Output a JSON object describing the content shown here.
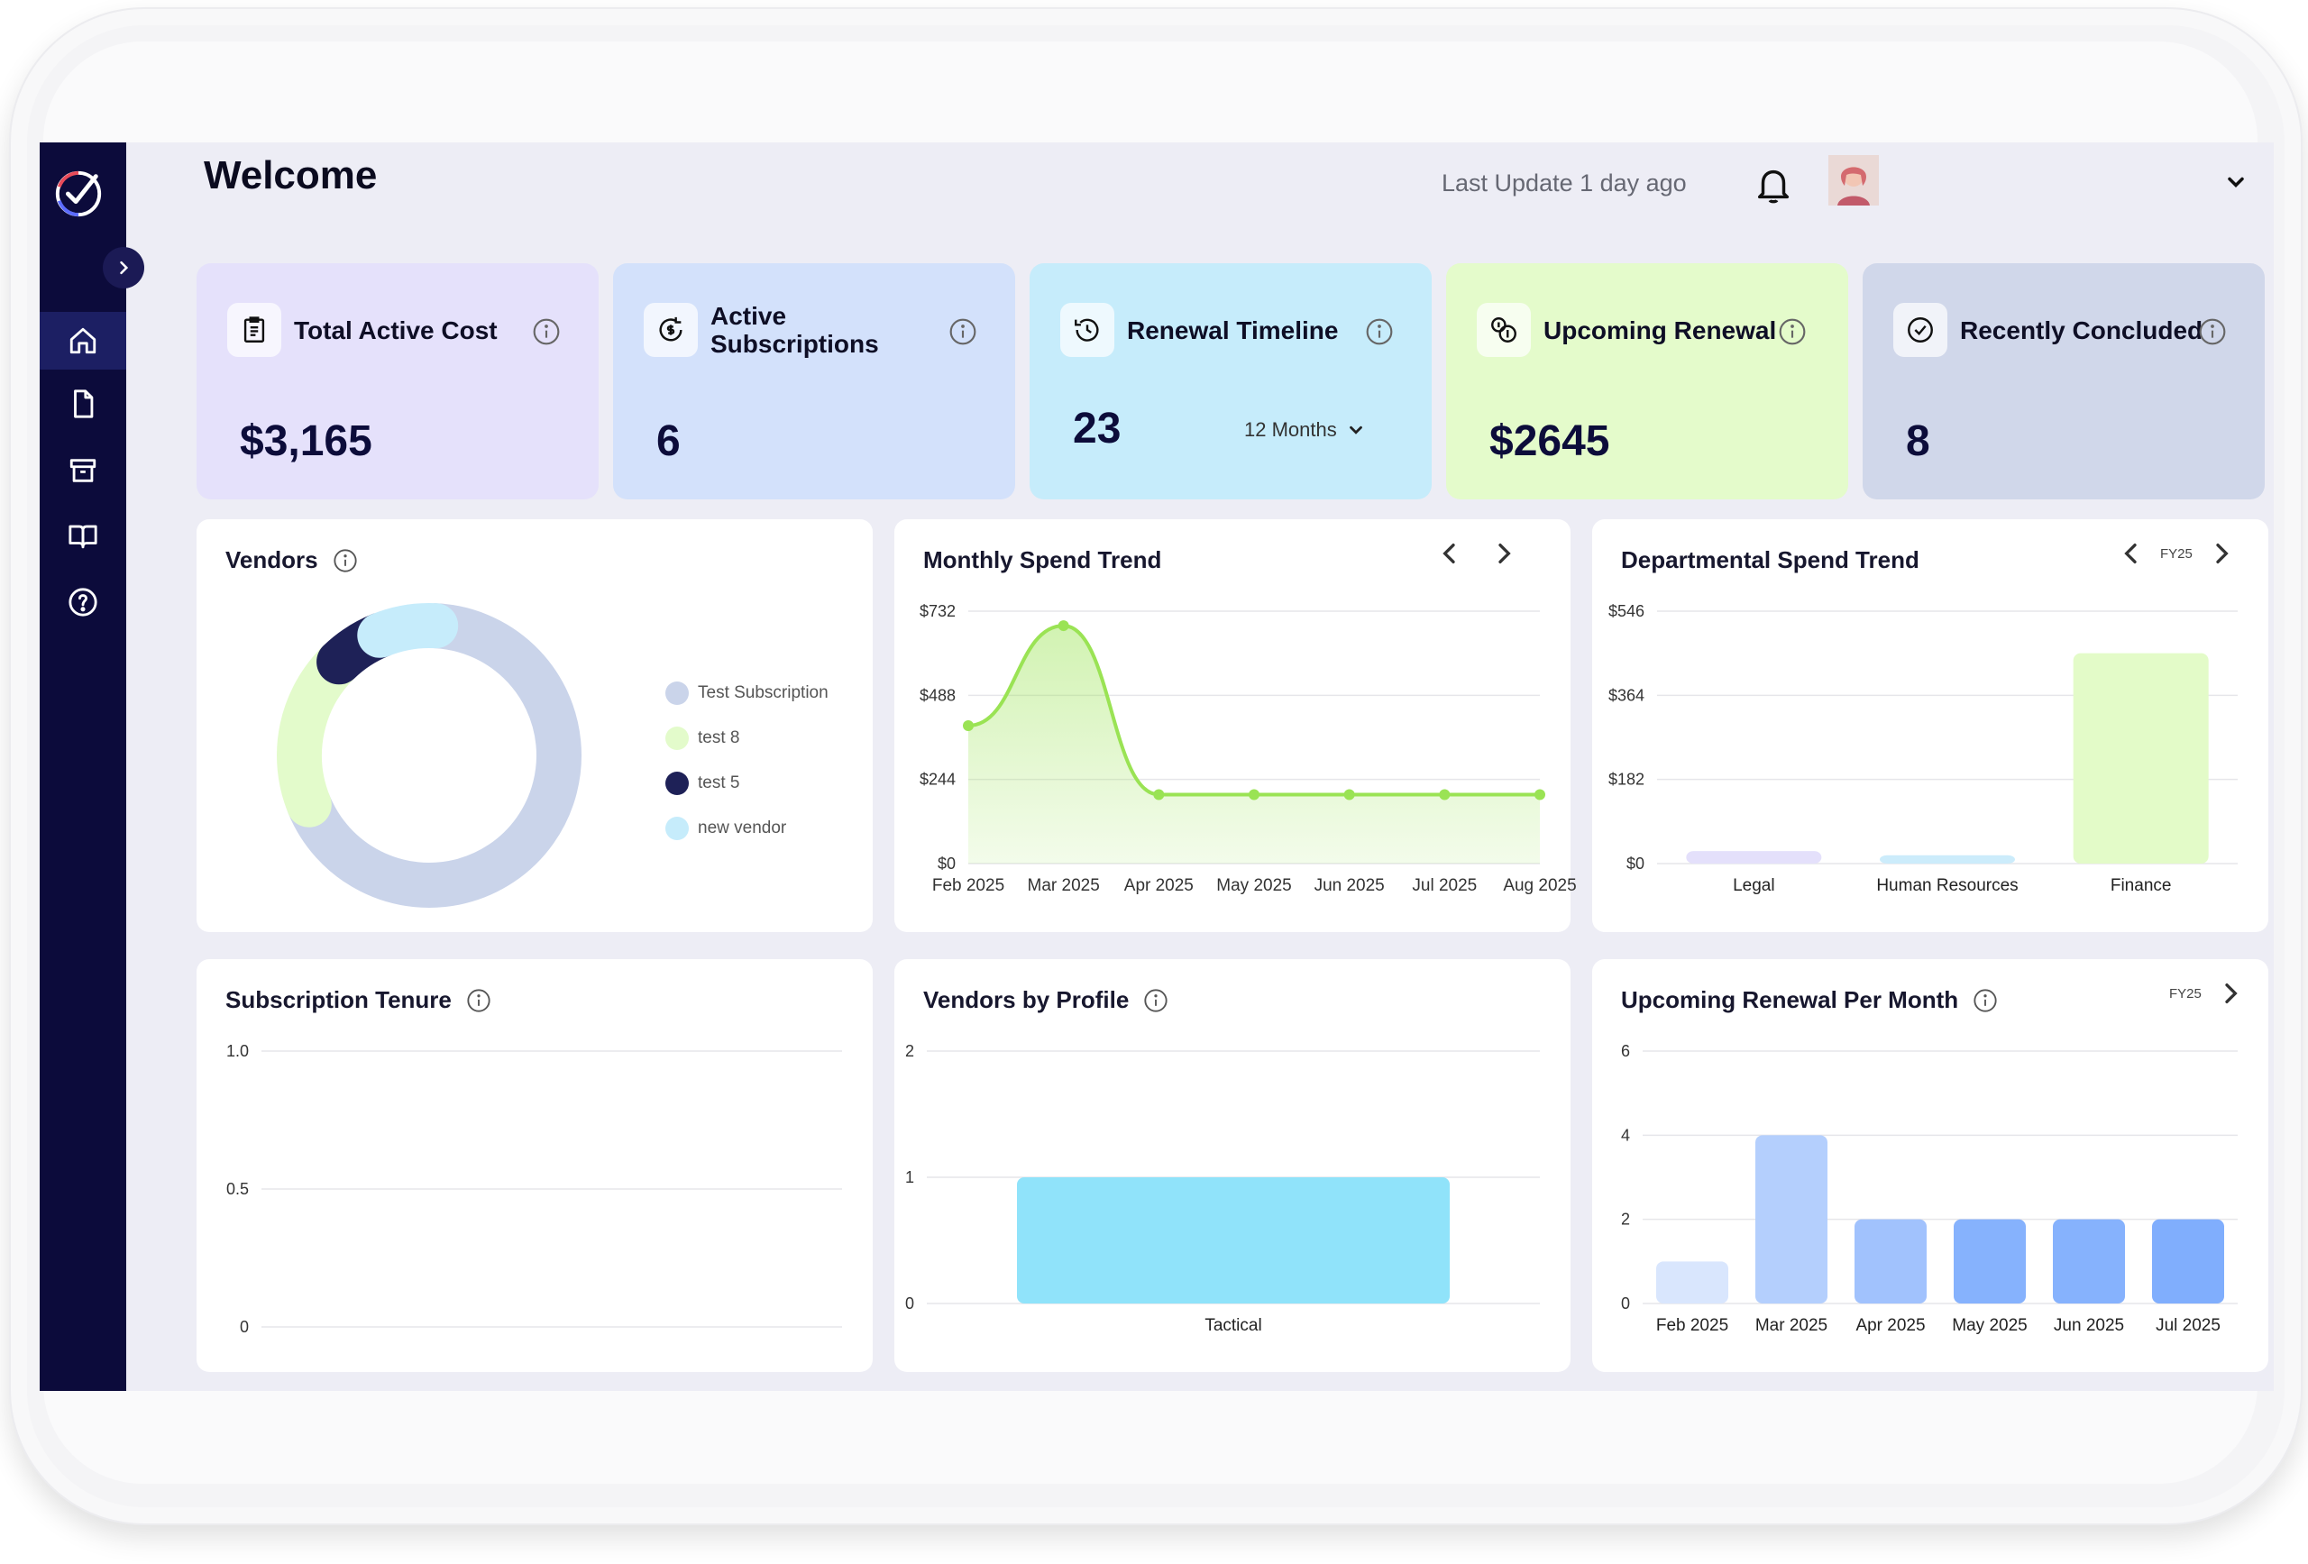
{
  "header": {
    "welcome": "Welcome",
    "last_update": "Last Update 1 day ago"
  },
  "sidebar": {
    "items": [
      {
        "name": "home-icon",
        "active": true
      },
      {
        "name": "document-icon",
        "active": false
      },
      {
        "name": "archive-icon",
        "active": false
      },
      {
        "name": "book-icon",
        "active": false
      },
      {
        "name": "help-icon",
        "active": false
      }
    ]
  },
  "stats": [
    {
      "title": "Total Active Cost",
      "value": "$3,165",
      "bg": "#e5e1fb"
    },
    {
      "title": "Active Subscriptions",
      "value": "6",
      "bg": "#d3e1fb"
    },
    {
      "title": "Renewal Timeline",
      "value": "23",
      "select": "12 Months",
      "bg": "#c6ecfb"
    },
    {
      "title": "Upcoming Renewal",
      "value": "$2645",
      "bg": "#e4fbcb"
    },
    {
      "title": "Recently Concluded",
      "value": "8",
      "bg": "#d0d7ea"
    }
  ],
  "cards": {
    "vendors": {
      "title": "Vendors"
    },
    "monthly": {
      "title": "Monthly Spend Trend"
    },
    "departmental": {
      "title": "Departmental Spend Trend",
      "fy": "FY25"
    },
    "tenure": {
      "title": "Subscription Tenure"
    },
    "profile": {
      "title": "Vendors by Profile"
    },
    "renewal": {
      "title": "Upcoming Renewal Per Month",
      "fy": "FY25"
    }
  },
  "chart_data": [
    {
      "type": "pie",
      "title": "Vendors",
      "variant": "donut",
      "legend_position": "right",
      "categories": [
        "Test Subscription",
        "test 8",
        "test 5",
        "new vendor"
      ],
      "values": [
        68,
        19,
        6,
        7
      ],
      "colors": [
        "#cad4ea",
        "#e3fbcb",
        "#1e2157",
        "#c6ecfb"
      ]
    },
    {
      "type": "area",
      "title": "Monthly Spend Trend",
      "x": [
        "Feb 2025",
        "Mar 2025",
        "Apr 2025",
        "May 2025",
        "Jun 2025",
        "Jul 2025",
        "Aug 2025"
      ],
      "values": [
        400,
        690,
        200,
        200,
        200,
        200,
        200
      ],
      "yticks": [
        "$0",
        "$244",
        "$488",
        "$732"
      ],
      "ylim": [
        0,
        732
      ],
      "color": "#9ae354",
      "grid": true
    },
    {
      "type": "bar",
      "title": "Departmental Spend Trend",
      "categories": [
        "Legal",
        "Human Resources",
        "Finance"
      ],
      "values": [
        27,
        18,
        455
      ],
      "yticks": [
        "$0",
        "$182",
        "$364",
        "$546"
      ],
      "ylim": [
        0,
        546
      ],
      "colors": [
        "#e4e0fb",
        "#ccecfb",
        "#e3fbc8"
      ],
      "grid": true
    },
    {
      "type": "line",
      "title": "Subscription Tenure",
      "x": [],
      "values": [],
      "yticks": [
        "0",
        "0.5",
        "1.0"
      ],
      "ylim": [
        0,
        1
      ],
      "grid": true
    },
    {
      "type": "bar",
      "title": "Vendors by Profile",
      "categories": [
        "Tactical"
      ],
      "values": [
        1
      ],
      "yticks": [
        "0",
        "1",
        "2"
      ],
      "ylim": [
        0,
        2
      ],
      "colors": [
        "#90e3fa"
      ],
      "grid": true
    },
    {
      "type": "bar",
      "title": "Upcoming Renewal Per Month",
      "categories": [
        "Feb 2025",
        "Mar 2025",
        "Apr 2025",
        "May 2025",
        "Jun 2025",
        "Jul 2025"
      ],
      "values": [
        1,
        4,
        2,
        2,
        2,
        2
      ],
      "yticks": [
        "0",
        "2",
        "4",
        "6"
      ],
      "ylim": [
        0,
        6
      ],
      "colors": [
        "#d9e6fd",
        "#b4cffd",
        "#a1c2fd",
        "#86b2fd",
        "#86b2fd",
        "#80aefd"
      ],
      "grid": true
    }
  ]
}
